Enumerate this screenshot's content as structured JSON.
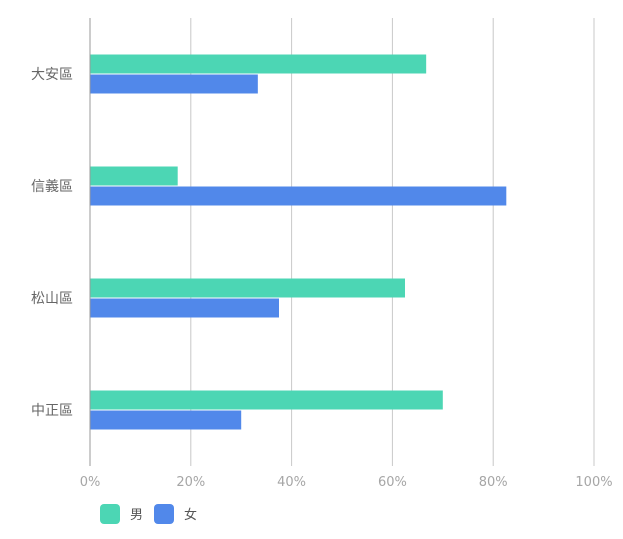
{
  "chart_data": {
    "type": "bar",
    "orientation": "horizontal",
    "title": "",
    "xlabel": "",
    "ylabel": "",
    "xlim": [
      0,
      100
    ],
    "x_ticks": [
      "0%",
      "20%",
      "40%",
      "60%",
      "80%",
      "100%"
    ],
    "categories": [
      "大安區",
      "信義區",
      "松山區",
      "中正區"
    ],
    "series": [
      {
        "name": "男",
        "color": "#4cd6b4",
        "values": [
          66.7,
          17.4,
          62.5,
          70.0
        ]
      },
      {
        "name": "女",
        "color": "#5188ea",
        "values": [
          33.3,
          82.6,
          37.5,
          30.0
        ]
      }
    ],
    "grid": true,
    "legend": {
      "position": "bottom-left"
    }
  }
}
